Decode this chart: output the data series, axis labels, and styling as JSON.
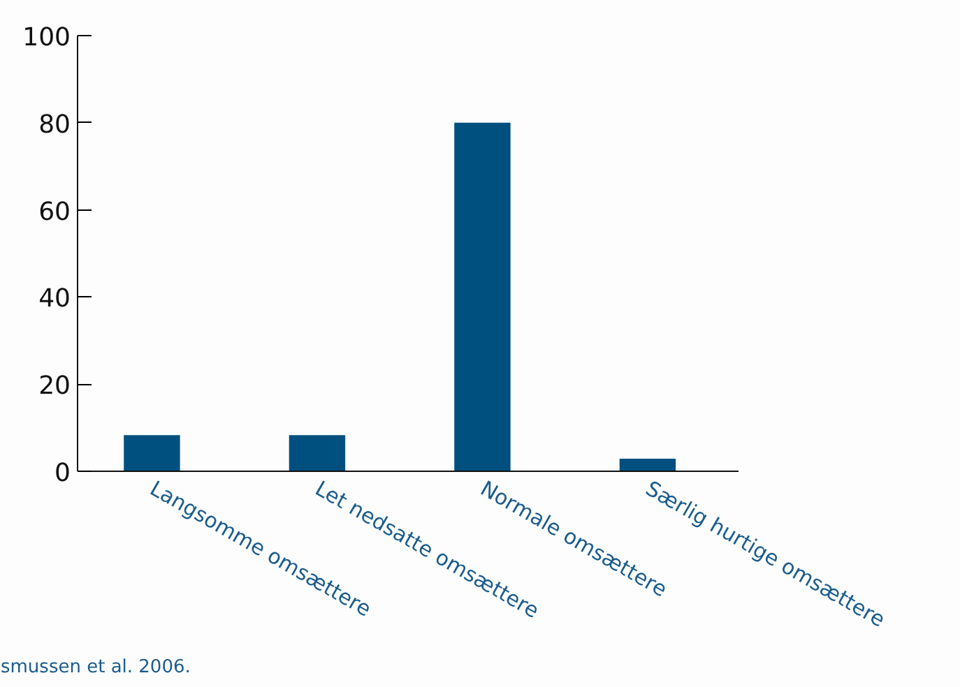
{
  "chart_data": {
    "type": "bar",
    "categories": [
      "Langsomme omsættere",
      "Let nedsatte omsættere",
      "Normale omsættere",
      "Særlig hurtige omsættere"
    ],
    "values": [
      8.3,
      8.3,
      80,
      2.9
    ],
    "color": "#00507f",
    "ylim": [
      0,
      100
    ],
    "yticks": [
      0,
      20,
      40,
      60,
      80,
      100
    ],
    "grid": false,
    "annotations": [
      "smussen et al. 2006."
    ]
  }
}
